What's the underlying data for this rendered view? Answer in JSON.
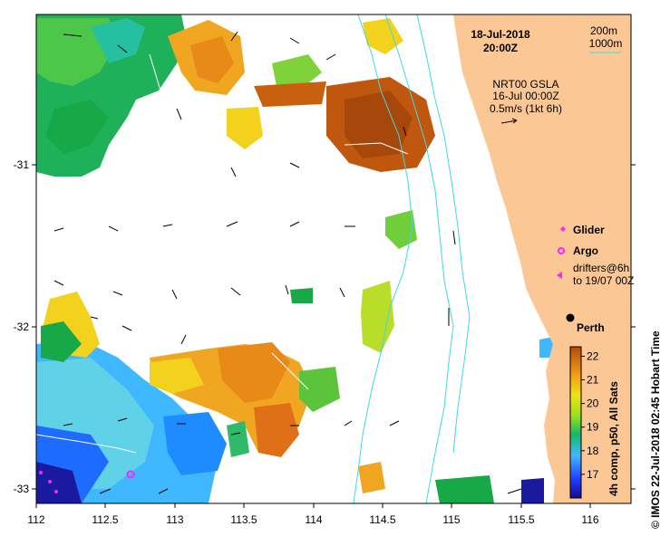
{
  "header": {
    "date": "18-Jul-2018",
    "time": "20:00Z"
  },
  "bathy_legend": {
    "line1": "200m",
    "line2": "1000m"
  },
  "current_legend": {
    "source": "NRT00 GSLA",
    "date": "16-Jul 00:00Z",
    "scale": "0.5m/s (1kt 6h)"
  },
  "symbols": {
    "glider": "Glider",
    "argo": "Argo",
    "drifters_line1": "drifters@6h",
    "drifters_line2": "to 19/07 00Z"
  },
  "place": {
    "name": "Perth",
    "lon": 115.86,
    "lat": -31.95
  },
  "colorbar": {
    "ticks": [
      "22",
      "21",
      "20",
      "19",
      "18",
      "17"
    ],
    "label": "4h comp, p50, All Sats",
    "min": 16,
    "max": 22.4
  },
  "axes": {
    "x_ticks": [
      "112",
      "112.5",
      "113",
      "113.5",
      "114",
      "114.5",
      "115",
      "115.5",
      "116"
    ],
    "y_ticks": [
      "-31",
      "-32",
      "-33"
    ],
    "xlim": [
      112,
      116.3
    ],
    "ylim": [
      -33.1,
      -30.1
    ]
  },
  "credit": "© IMOS 22-Jul-2018 02:45 Hobart Time",
  "colors": {
    "land": "#fbc895",
    "isobath": "#3fd8e8",
    "symbol": "#ff22ff"
  }
}
